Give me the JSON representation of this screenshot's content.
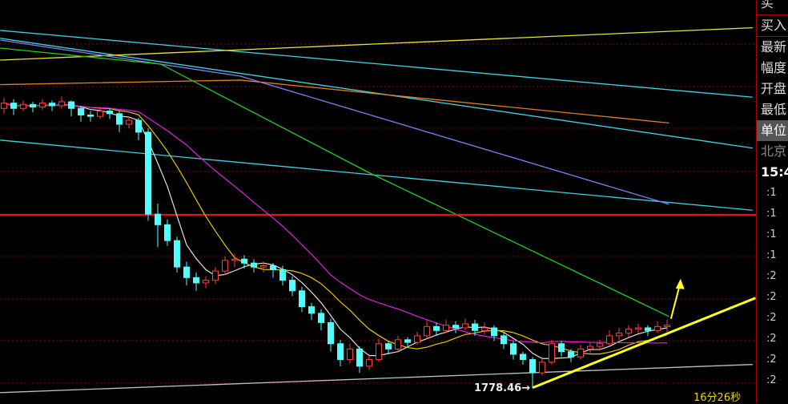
{
  "chart_data": {
    "type": "candlestick",
    "ylim": [
      1767,
      2072
    ],
    "colors": {
      "up": "#ff3c3c",
      "down": "#54fcfc",
      "ma5": "#e0e0e0",
      "ma10": "#e8c800",
      "ma20": "#e020e0",
      "grid": "#8a0000",
      "resistance": "#ff1010"
    },
    "candles": [
      [
        1990,
        1998,
        1986,
        1994
      ],
      [
        1994,
        1997,
        1985,
        1990
      ],
      [
        1990,
        1996,
        1988,
        1993
      ],
      [
        1993,
        1995,
        1987,
        1991
      ],
      [
        1991,
        1997,
        1989,
        1994
      ],
      [
        1994,
        1996,
        1988,
        1992
      ],
      [
        1992,
        1999,
        1990,
        1995
      ],
      [
        1995,
        1996,
        1984,
        1990
      ],
      [
        1990,
        1992,
        1980,
        1985
      ],
      [
        1985,
        1988,
        1980,
        1984
      ],
      [
        1984,
        1991,
        1982,
        1988
      ],
      [
        1988,
        1990,
        1982,
        1986
      ],
      [
        1986,
        1988,
        1972,
        1978
      ],
      [
        1978,
        1984,
        1975,
        1981
      ],
      [
        1981,
        1983,
        1966,
        1972
      ],
      [
        1972,
        1975,
        1905,
        1910
      ],
      [
        1910,
        1918,
        1885,
        1902
      ],
      [
        1902,
        1906,
        1886,
        1890
      ],
      [
        1890,
        1893,
        1866,
        1870
      ],
      [
        1870,
        1874,
        1856,
        1862
      ],
      [
        1862,
        1866,
        1852,
        1858
      ],
      [
        1858,
        1863,
        1854,
        1860
      ],
      [
        1860,
        1870,
        1857,
        1867
      ],
      [
        1867,
        1878,
        1864,
        1875
      ],
      [
        1875,
        1880,
        1870,
        1876
      ],
      [
        1876,
        1879,
        1869,
        1873
      ],
      [
        1873,
        1876,
        1866,
        1870
      ],
      [
        1870,
        1874,
        1866,
        1871
      ],
      [
        1871,
        1873,
        1862,
        1868
      ],
      [
        1868,
        1871,
        1856,
        1860
      ],
      [
        1860,
        1863,
        1848,
        1852
      ],
      [
        1852,
        1855,
        1836,
        1840
      ],
      [
        1840,
        1843,
        1830,
        1835
      ],
      [
        1835,
        1838,
        1822,
        1828
      ],
      [
        1828,
        1831,
        1806,
        1812
      ],
      [
        1812,
        1815,
        1795,
        1800
      ],
      [
        1800,
        1812,
        1797,
        1808
      ],
      [
        1808,
        1810,
        1790,
        1795
      ],
      [
        1795,
        1804,
        1792,
        1800
      ],
      [
        1800,
        1816,
        1798,
        1812
      ],
      [
        1812,
        1814,
        1804,
        1808
      ],
      [
        1808,
        1818,
        1806,
        1815
      ],
      [
        1815,
        1817,
        1809,
        1813
      ],
      [
        1813,
        1821,
        1811,
        1818
      ],
      [
        1818,
        1830,
        1816,
        1825
      ],
      [
        1825,
        1828,
        1818,
        1822
      ],
      [
        1822,
        1830,
        1820,
        1826
      ],
      [
        1826,
        1829,
        1820,
        1824
      ],
      [
        1824,
        1831,
        1822,
        1827
      ],
      [
        1827,
        1830,
        1818,
        1822
      ],
      [
        1822,
        1828,
        1819,
        1824
      ],
      [
        1824,
        1826,
        1814,
        1818
      ],
      [
        1818,
        1820,
        1808,
        1812
      ],
      [
        1812,
        1814,
        1800,
        1804
      ],
      [
        1804,
        1806,
        1796,
        1800
      ],
      [
        1800,
        1802,
        1778.46,
        1790
      ],
      [
        1790,
        1802,
        1788,
        1798
      ],
      [
        1798,
        1815,
        1796,
        1812
      ],
      [
        1812,
        1814,
        1802,
        1806
      ],
      [
        1806,
        1808,
        1798,
        1802
      ],
      [
        1802,
        1811,
        1800,
        1808
      ],
      [
        1808,
        1813,
        1805,
        1810
      ],
      [
        1810,
        1815,
        1807,
        1812
      ],
      [
        1812,
        1822,
        1810,
        1818
      ],
      [
        1818,
        1824,
        1815,
        1820
      ],
      [
        1820,
        1826,
        1817,
        1823
      ],
      [
        1823,
        1827,
        1820,
        1824
      ],
      [
        1824,
        1826,
        1818,
        1822
      ],
      [
        1822,
        1829,
        1820,
        1825
      ],
      [
        1825,
        1830,
        1821,
        1826
      ]
    ],
    "moving_averages": [
      5,
      10,
      20
    ],
    "long_lines": [
      {
        "color": "#40d0e0",
        "points": [
          [
            -0.4,
            2049
          ],
          [
            77.9,
            1998.5
          ]
        ]
      },
      {
        "color": "#40d0e0",
        "points": [
          [
            -0.4,
            2043
          ],
          [
            77.9,
            1960
          ]
        ]
      },
      {
        "color": "#40d0e0",
        "points": [
          [
            -0.4,
            1966
          ],
          [
            77.9,
            1913
          ]
        ]
      },
      {
        "color": "#e8e040",
        "points": [
          [
            -0.4,
            2026.5
          ],
          [
            77.9,
            2051
          ]
        ]
      },
      {
        "color": "#e08020",
        "points": [
          [
            -0.4,
            2008
          ],
          [
            24.6,
            2011.4
          ],
          [
            69.2,
            1979
          ]
        ]
      },
      {
        "color": "#8080f0",
        "points": [
          [
            -0.4,
            2041.7
          ],
          [
            24.6,
            2014.4
          ],
          [
            69.2,
            1917.5
          ]
        ]
      },
      {
        "color": "#20d020",
        "points": [
          [
            -0.4,
            2035.6
          ],
          [
            16.3,
            2023.5
          ],
          [
            37.9,
            1941.7
          ],
          [
            69.2,
            1832.6
          ]
        ]
      },
      {
        "color": "#c0c0c0",
        "points": [
          [
            -0.4,
            1775
          ],
          [
            77.9,
            1796.3
          ]
        ]
      }
    ],
    "resistance_price": 1909.6,
    "trendline": {
      "color": "#ffff20",
      "points": [
        [
          55,
          1778.7
        ],
        [
          78.2,
          1846.6
        ]
      ]
    },
    "arrow": {
      "color": "#ffff20",
      "points": [
        [
          69.4,
          1830.8
        ],
        [
          70.4,
          1858.7
        ]
      ]
    },
    "low_annotation": "1778.46→"
  },
  "side_panel": {
    "top_partial": "买",
    "items": [
      "买入",
      "最新",
      "幅度",
      "开盘",
      "最低",
      "单位"
    ],
    "selected": "单位",
    "region": "北京",
    "time": "15:4",
    "ticks": [
      ":1",
      ":1",
      ":1",
      ":1",
      ":2",
      ":2",
      ":2",
      ":2",
      ":2",
      ":2"
    ]
  },
  "countdown": "16分26秒"
}
